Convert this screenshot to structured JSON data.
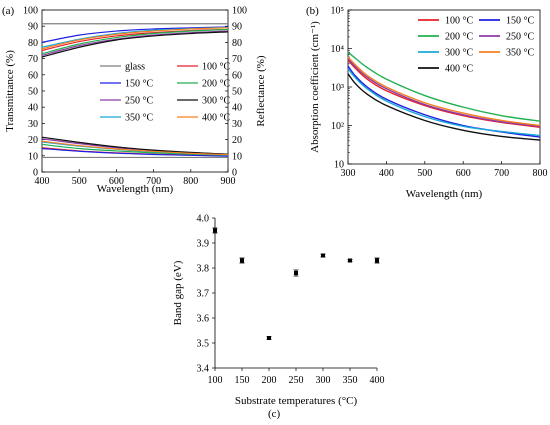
{
  "figure": {
    "panel_a_label": "(a)",
    "panel_b_label": "(b)",
    "panel_c_label": "(c)"
  },
  "chart_data": [
    {
      "type": "line",
      "panel": "(a)",
      "xlabel": "Wavelength (nm)",
      "ylabel": "Transmittance (%)",
      "y2label": "Reflectance (%)",
      "xlim": [
        400,
        900
      ],
      "ylim": [
        0,
        100
      ],
      "y2lim": [
        0,
        100
      ],
      "xticks": [
        400,
        500,
        600,
        700,
        800,
        900
      ],
      "yticks": [
        0,
        10,
        20,
        30,
        40,
        50,
        60,
        70,
        80,
        90,
        100
      ],
      "legend_position": "center",
      "legend": [
        "glass",
        "100 °C",
        "150 °C",
        "200 °C",
        "250 °C",
        "300 °C",
        "350 °C",
        "400 °C"
      ],
      "series": [
        {
          "name": "glass",
          "color": "#7f7f7f",
          "x": [
            400,
            500,
            600,
            700,
            800,
            900
          ],
          "transmittance": [
            91.5,
            91.5,
            91.5,
            91.5,
            91.5,
            91.5
          ],
          "reflectance": [
            9,
            9,
            9,
            9,
            9,
            9
          ]
        },
        {
          "name": "100 °C",
          "color": "#e8202a",
          "x": [
            400,
            500,
            600,
            700,
            800,
            900
          ],
          "transmittance": [
            75,
            80.5,
            84,
            86,
            87.3,
            88
          ],
          "reflectance": [
            15,
            13,
            11.8,
            11,
            10.5,
            10
          ]
        },
        {
          "name": "150 °C",
          "color": "#1f1fe0",
          "x": [
            400,
            500,
            600,
            700,
            800,
            900
          ],
          "transmittance": [
            80,
            84.5,
            87,
            88.3,
            89,
            89.5
          ],
          "reflectance": [
            14.5,
            12.8,
            11.6,
            10.8,
            10.3,
            9.8
          ]
        },
        {
          "name": "200 °C",
          "color": "#20b050",
          "x": [
            400,
            500,
            600,
            700,
            800,
            900
          ],
          "transmittance": [
            73,
            79,
            83,
            85.5,
            87,
            88
          ],
          "reflectance": [
            17,
            14.5,
            13,
            11.8,
            11,
            10.4
          ]
        },
        {
          "name": "250 °C",
          "color": "#8e3ba8",
          "x": [
            400,
            500,
            600,
            700,
            800,
            900
          ],
          "transmittance": [
            72,
            78,
            82,
            84.5,
            86,
            87
          ],
          "reflectance": [
            20.5,
            17.5,
            15,
            13.3,
            12,
            11
          ]
        },
        {
          "name": "300 °C",
          "color": "#111111",
          "x": [
            400,
            500,
            600,
            700,
            800,
            900
          ],
          "transmittance": [
            71,
            77,
            81.5,
            84,
            85.5,
            86.5
          ],
          "reflectance": [
            21.5,
            18.3,
            15.5,
            13.5,
            12.1,
            11
          ]
        },
        {
          "name": "350 °C",
          "color": "#19a9d8",
          "x": [
            400,
            500,
            600,
            700,
            800,
            900
          ],
          "transmittance": [
            77,
            82,
            85.5,
            87.5,
            88.5,
            89.3
          ],
          "reflectance": [
            18.5,
            16,
            14,
            12.5,
            11.4,
            10.6
          ]
        },
        {
          "name": "400 °C",
          "color": "#f5801f",
          "x": [
            400,
            500,
            600,
            700,
            800,
            900
          ],
          "transmittance": [
            76,
            81.5,
            85,
            87,
            88.3,
            89
          ],
          "reflectance": [
            19,
            16.3,
            14.2,
            12.7,
            11.5,
            10.7
          ]
        }
      ]
    },
    {
      "type": "line",
      "panel": "(b)",
      "xlabel": "Wavelength (nm)",
      "ylabel": "Absorption coefficient (cm⁻¹)",
      "xlim": [
        300,
        800
      ],
      "ylim": [
        10,
        100000
      ],
      "yscale": "log",
      "xticks": [
        300,
        400,
        500,
        600,
        700,
        800
      ],
      "ytick_labels": [
        "10",
        "10²",
        "10³",
        "10⁴",
        "10⁵"
      ],
      "legend_position": "top-right",
      "legend": [
        "100 °C",
        "150 °C",
        "200 °C",
        "250 °C",
        "300 °C",
        "350 °C",
        "400 °C"
      ],
      "series": [
        {
          "name": "100 °C",
          "color": "#e8202a",
          "x": [
            300,
            320,
            350,
            400,
            500,
            600,
            700,
            800
          ],
          "values": [
            5000,
            3000,
            1600,
            800,
            330,
            180,
            120,
            90
          ]
        },
        {
          "name": "150 °C",
          "color": "#1f1fe0",
          "x": [
            300,
            320,
            350,
            400,
            500,
            600,
            700,
            800
          ],
          "values": [
            3500,
            1900,
            1000,
            480,
            190,
            100,
            68,
            50
          ]
        },
        {
          "name": "200 °C",
          "color": "#20b050",
          "x": [
            300,
            320,
            350,
            400,
            500,
            600,
            700,
            800
          ],
          "values": [
            8000,
            5500,
            3200,
            1600,
            600,
            300,
            180,
            130
          ]
        },
        {
          "name": "250 °C",
          "color": "#8e3ba8",
          "x": [
            300,
            320,
            350,
            400,
            500,
            600,
            700,
            800
          ],
          "values": [
            5500,
            3300,
            1800,
            900,
            350,
            190,
            125,
            95
          ]
        },
        {
          "name": "300 °C",
          "color": "#19a9d8",
          "x": [
            300,
            320,
            350,
            400,
            500,
            600,
            700,
            800
          ],
          "values": [
            3000,
            1700,
            900,
            430,
            170,
            95,
            70,
            55
          ]
        },
        {
          "name": "350 °C",
          "color": "#f5801f",
          "x": [
            300,
            320,
            350,
            400,
            500,
            600,
            700,
            800
          ],
          "values": [
            6000,
            3700,
            2000,
            1000,
            390,
            210,
            135,
            100
          ]
        },
        {
          "name": "400 °C",
          "color": "#111111",
          "x": [
            300,
            320,
            350,
            400,
            500,
            600,
            700,
            800
          ],
          "values": [
            2200,
            1200,
            650,
            330,
            135,
            75,
            52,
            42
          ]
        }
      ]
    },
    {
      "type": "scatter",
      "panel": "(c)",
      "xlabel": "Substrate temperatures (°C)",
      "ylabel": "Band gap (eV)",
      "xlim": [
        100,
        400
      ],
      "ylim": [
        3.4,
        4.0
      ],
      "xticks": [
        100,
        150,
        200,
        250,
        300,
        350,
        400
      ],
      "yticks": [
        3.4,
        3.5,
        3.6,
        3.7,
        3.8,
        3.9,
        4.0
      ],
      "x": [
        100,
        150,
        200,
        250,
        300,
        350,
        400
      ],
      "values": [
        3.95,
        3.83,
        3.52,
        3.78,
        3.85,
        3.83,
        3.83
      ],
      "error": [
        0.01,
        0.01,
        0.005,
        0.012,
        0.006,
        0.005,
        0.01
      ]
    }
  ]
}
